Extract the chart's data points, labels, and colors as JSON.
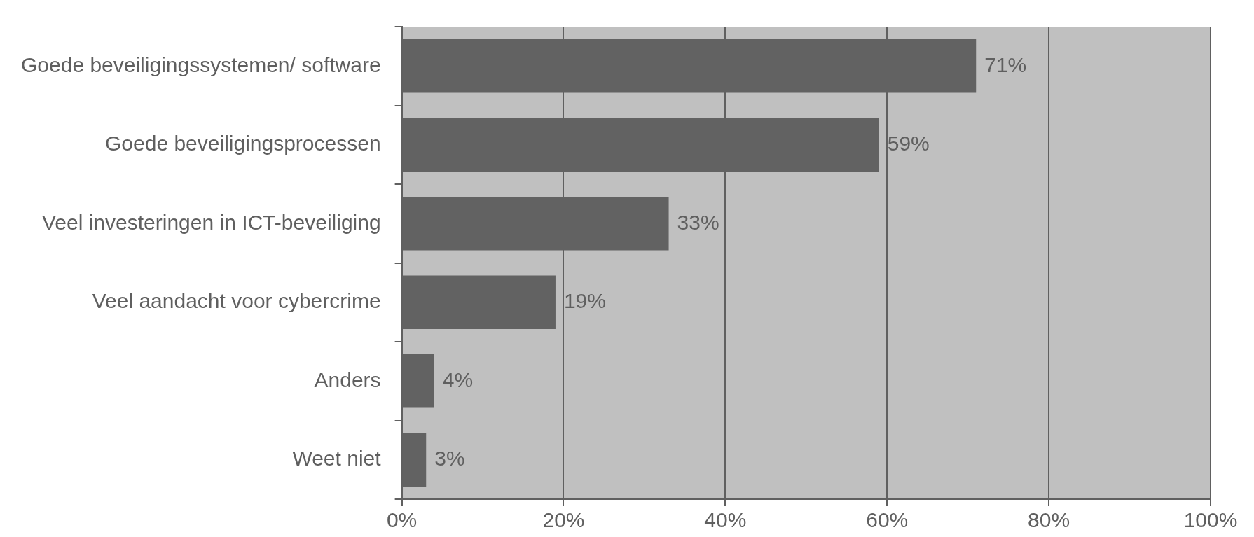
{
  "chart_data": {
    "type": "bar",
    "orientation": "horizontal",
    "categories": [
      "Goede beveiligingssystemen/ software",
      "Goede beveiligingsprocessen",
      "Veel investeringen in ICT-beveiliging",
      "Veel aandacht voor cybercrime",
      "Anders",
      "Weet niet"
    ],
    "values": [
      71,
      59,
      33,
      19,
      4,
      3
    ],
    "color": "#626262",
    "value_labels": [
      "71%",
      "59%",
      "33%",
      "19%",
      "4%",
      "3%"
    ],
    "xlim": [
      0,
      100
    ],
    "xticks": [
      {
        "value": 0,
        "label": "0%"
      },
      {
        "value": 20,
        "label": "20%"
      },
      {
        "value": 40,
        "label": "40%"
      },
      {
        "value": 60,
        "label": "60%"
      },
      {
        "value": 80,
        "label": "80%"
      },
      {
        "value": 100,
        "label": "100%"
      }
    ],
    "grid": "x",
    "legend": false
  }
}
